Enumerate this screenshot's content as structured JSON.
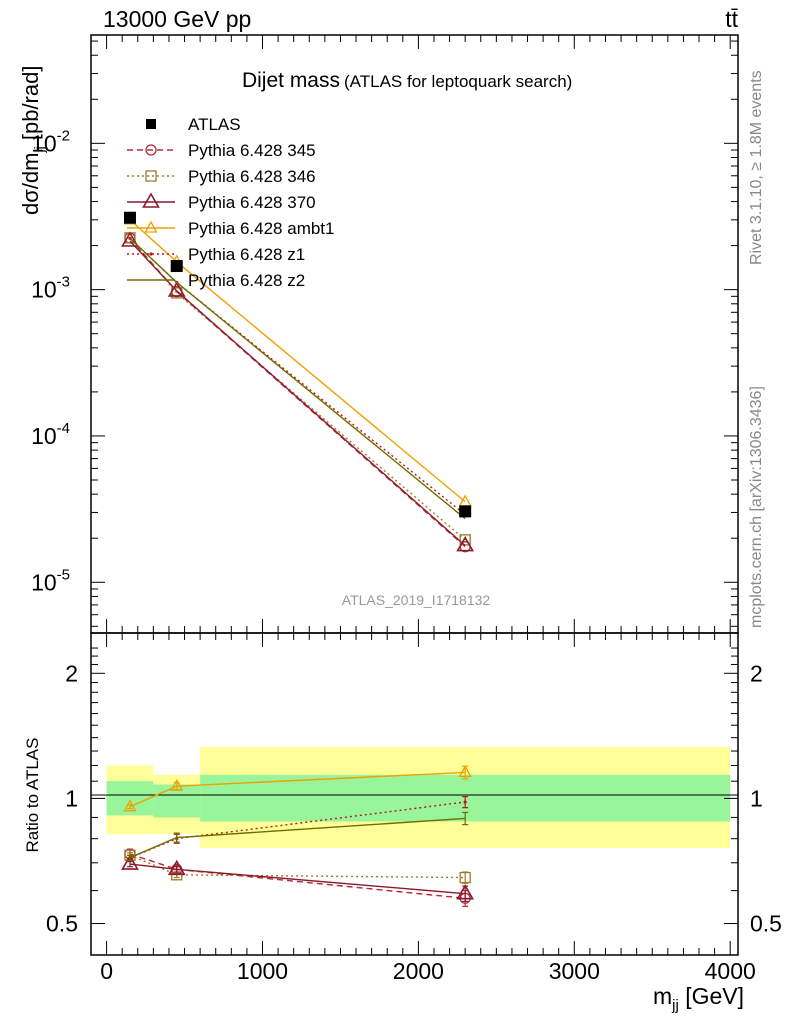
{
  "header": {
    "energy_label": "13000 GeV pp",
    "process_label": "tt̄"
  },
  "side": {
    "rivet": "Rivet 3.1.10, ≥ 1.8M events",
    "mcplots": "mcplots.cern.ch [arXiv:1306.3436]"
  },
  "chart_data": [
    {
      "type": "line",
      "title": "Dijet mass",
      "subtitle": "(ATLAS for leptoquark search)",
      "watermark": "ATLAS_2019_I1718132",
      "ylabel": "dσ/dm",
      "ylabel_sub": "jj",
      "ylabel_unit": "[pb/rad]",
      "yscale": "log",
      "ylim": [
        4.5e-06,
        0.055
      ],
      "xlim": [
        -100,
        4050
      ],
      "ytick_labels": [
        {
          "base": "10",
          "exp": "-2",
          "value": 0.01
        },
        {
          "base": "10",
          "exp": "-3",
          "value": 0.001
        },
        {
          "base": "10",
          "exp": "-4",
          "value": 0.0001
        },
        {
          "base": "10",
          "exp": "-5",
          "value": 1e-05
        }
      ],
      "legend_position": "top-left",
      "data": {
        "name": "ATLAS",
        "x": [
          150,
          450,
          2300
        ],
        "y": [
          0.0031,
          0.00145,
          3.05e-05
        ]
      },
      "series": [
        {
          "name": "Pythia 6.428 345",
          "color": "#b5283c",
          "dash": "6,4",
          "marker": "circle",
          "x": [
            150,
            450,
            2300
          ],
          "y": [
            0.00225,
            0.00097,
            1.75e-05
          ]
        },
        {
          "name": "Pythia 6.428 346",
          "color": "#a07828",
          "dash": "2,3",
          "marker": "square",
          "x": [
            150,
            450,
            2300
          ],
          "y": [
            0.00226,
            0.00095,
            1.95e-05
          ]
        },
        {
          "name": "Pythia 6.428 370",
          "color": "#8b1a2e",
          "dash": "",
          "marker": "triangle-big",
          "x": [
            150,
            450,
            2300
          ],
          "y": [
            0.00215,
            0.00098,
            1.78e-05
          ]
        },
        {
          "name": "Pythia 6.428 ambt1",
          "color": "#f0a000",
          "dash": "",
          "marker": "triangle",
          "x": [
            150,
            450,
            2300
          ],
          "y": [
            0.003,
            0.00155,
            3.55e-05
          ]
        },
        {
          "name": "Pythia 6.428 z1",
          "color": "#b81818",
          "dash": "2,3",
          "marker": "dot",
          "x": [
            150,
            450,
            2300
          ],
          "y": [
            0.00224,
            0.00112,
            2.9e-05
          ]
        },
        {
          "name": "Pythia 6.428 z2",
          "color": "#6e6e00",
          "dash": "",
          "marker": "none",
          "x": [
            150,
            450,
            2300
          ],
          "y": [
            0.00224,
            0.00112,
            2.72e-05
          ]
        }
      ]
    },
    {
      "type": "line",
      "ylabel": "Ratio to ATLAS",
      "xlabel": "m",
      "xlabel_sub": "jj",
      "xlabel_unit": "[GeV]",
      "yscale": "log",
      "ylim": [
        0.42,
        2.5
      ],
      "xlim": [
        -100,
        4050
      ],
      "xtick_labels": [
        "0",
        "1000",
        "2000",
        "3000",
        "4000"
      ],
      "xtick_values": [
        0,
        1000,
        2000,
        3000,
        4000
      ],
      "ytick_labels": [
        "2",
        "1",
        "0.5"
      ],
      "ytick_values": [
        2,
        1,
        0.5
      ],
      "bands": [
        {
          "x": [
            0,
            300
          ],
          "inner": [
            0.91,
            1.1
          ],
          "outer": [
            0.82,
            1.2
          ]
        },
        {
          "x": [
            300,
            600
          ],
          "inner": [
            0.9,
            1.08
          ],
          "outer": [
            0.82,
            1.14
          ]
        },
        {
          "x": [
            600,
            4000
          ],
          "inner": [
            0.88,
            1.14
          ],
          "outer": [
            0.76,
            1.33
          ]
        }
      ],
      "series": [
        {
          "name": "Pythia 6.428 345",
          "color": "#b5283c",
          "dash": "6,4",
          "marker": "circle",
          "x": [
            150,
            450,
            2300
          ],
          "y": [
            0.735,
            0.675,
            0.575
          ],
          "err": [
            0.02,
            0.015,
            0.025
          ]
        },
        {
          "name": "Pythia 6.428 346",
          "color": "#a07828",
          "dash": "2,3",
          "marker": "square",
          "x": [
            150,
            450,
            2300
          ],
          "y": [
            0.73,
            0.655,
            0.645
          ],
          "err": [
            0.01,
            0.01,
            0.02
          ]
        },
        {
          "name": "Pythia 6.428 370",
          "color": "#8b1a2e",
          "dash": "",
          "marker": "triangle-big",
          "x": [
            150,
            450,
            2300
          ],
          "y": [
            0.695,
            0.675,
            0.59
          ],
          "err": [
            0.01,
            0.01,
            0.025
          ]
        },
        {
          "name": "Pythia 6.428 ambt1",
          "color": "#f0a000",
          "dash": "",
          "marker": "triangle",
          "x": [
            150,
            450,
            2300
          ],
          "y": [
            0.955,
            1.07,
            1.155
          ],
          "err": [
            0.01,
            0.02,
            0.04
          ]
        },
        {
          "name": "Pythia 6.428 z1",
          "color": "#b81818",
          "dash": "2,3",
          "marker": "dot",
          "x": [
            150,
            450,
            2300
          ],
          "y": [
            0.72,
            0.8,
            0.98
          ],
          "err": [
            0.01,
            0.02,
            0.03
          ]
        },
        {
          "name": "Pythia 6.428 z2",
          "color": "#6e6e00",
          "dash": "",
          "marker": "none",
          "x": [
            150,
            450,
            2300
          ],
          "y": [
            0.72,
            0.805,
            0.895
          ],
          "err": [
            0.01,
            0.02,
            0.03
          ]
        }
      ]
    }
  ]
}
